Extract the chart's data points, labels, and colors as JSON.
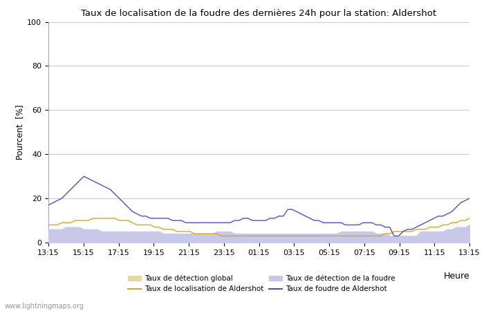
{
  "title": "Taux de localisation de la foudre des dernières 24h pour la station: Aldershot",
  "xlabel": "Heure",
  "ylabel": "Pourcent  [%]",
  "ylim": [
    0,
    100
  ],
  "yticks": [
    0,
    20,
    40,
    60,
    80,
    100
  ],
  "x_tick_labels": [
    "13:15",
    "15:15",
    "17:15",
    "19:15",
    "21:15",
    "23:15",
    "01:15",
    "03:15",
    "05:15",
    "07:15",
    "09:15",
    "11:15",
    "13:15"
  ],
  "watermark": "www.lightningmaps.org",
  "bg_color": "#ffffff",
  "plot_bg_color": "#ffffff",
  "grid_color": "#cccccc",
  "taux_detection_global_color": "#e8d8a0",
  "taux_detection_foudre_color": "#c8c8e8",
  "taux_localisation_color": "#d4a820",
  "taux_foudre_color": "#5050bb",
  "taux_detection_global": [
    2,
    2,
    2,
    2,
    2,
    2,
    2,
    2,
    2,
    2,
    2,
    2,
    2,
    2,
    2,
    2,
    2,
    2,
    2,
    2,
    2,
    2,
    2,
    2,
    2,
    2,
    2,
    2,
    2,
    2,
    2,
    2,
    2,
    1,
    1,
    1,
    1,
    1,
    1,
    1,
    1,
    1,
    1,
    1,
    1,
    1,
    1,
    1,
    1,
    1,
    1,
    1,
    1,
    1,
    1,
    1,
    1,
    1,
    1,
    1,
    1,
    1,
    1,
    1,
    1,
    1,
    1,
    1,
    1,
    1,
    1,
    1,
    1,
    1,
    1,
    1,
    1,
    1,
    1,
    1,
    1,
    1,
    1,
    1,
    1,
    1,
    1,
    1,
    1,
    1,
    1,
    1,
    1,
    1,
    1,
    1
  ],
  "taux_detection_foudre": [
    6,
    6,
    6,
    6,
    7,
    7,
    7,
    7,
    6,
    6,
    6,
    6,
    5,
    5,
    5,
    5,
    5,
    5,
    5,
    5,
    5,
    5,
    5,
    5,
    5,
    5,
    4,
    4,
    4,
    4,
    4,
    4,
    4,
    4,
    4,
    4,
    4,
    4,
    5,
    5,
    5,
    5,
    4,
    4,
    4,
    4,
    4,
    4,
    4,
    4,
    4,
    4,
    4,
    4,
    4,
    4,
    4,
    4,
    4,
    4,
    4,
    4,
    4,
    4,
    4,
    4,
    5,
    5,
    5,
    5,
    5,
    5,
    5,
    5,
    4,
    4,
    4,
    3,
    3,
    3,
    3,
    3,
    3,
    3,
    5,
    5,
    5,
    5,
    5,
    5,
    6,
    6,
    7,
    7,
    7,
    8
  ],
  "taux_localisation": [
    8,
    8,
    8,
    9,
    9,
    9,
    10,
    10,
    10,
    10,
    11,
    11,
    11,
    11,
    11,
    11,
    10,
    10,
    10,
    9,
    8,
    8,
    8,
    8,
    7,
    7,
    6,
    6,
    6,
    5,
    5,
    5,
    5,
    4,
    4,
    4,
    4,
    4,
    4,
    3,
    3,
    3,
    3,
    3,
    3,
    3,
    3,
    3,
    3,
    3,
    3,
    3,
    3,
    3,
    3,
    3,
    3,
    3,
    3,
    3,
    3,
    3,
    3,
    3,
    3,
    3,
    3,
    3,
    3,
    3,
    3,
    3,
    3,
    3,
    3,
    3,
    4,
    4,
    5,
    5,
    5,
    5,
    5,
    6,
    6,
    6,
    7,
    7,
    7,
    8,
    8,
    9,
    9,
    10,
    10,
    11
  ],
  "taux_foudre": [
    17,
    18,
    19,
    20,
    22,
    24,
    26,
    28,
    30,
    29,
    28,
    27,
    26,
    25,
    24,
    22,
    20,
    18,
    16,
    14,
    13,
    12,
    12,
    11,
    11,
    11,
    11,
    11,
    10,
    10,
    10,
    9,
    9,
    9,
    9,
    9,
    9,
    9,
    9,
    9,
    9,
    9,
    10,
    10,
    11,
    11,
    10,
    10,
    10,
    10,
    11,
    11,
    12,
    12,
    15,
    15,
    14,
    13,
    12,
    11,
    10,
    10,
    9,
    9,
    9,
    9,
    9,
    8,
    8,
    8,
    8,
    9,
    9,
    9,
    8,
    8,
    7,
    7,
    3,
    3,
    5,
    6,
    6,
    7,
    8,
    9,
    10,
    11,
    12,
    12,
    13,
    14,
    16,
    18,
    19,
    20
  ]
}
